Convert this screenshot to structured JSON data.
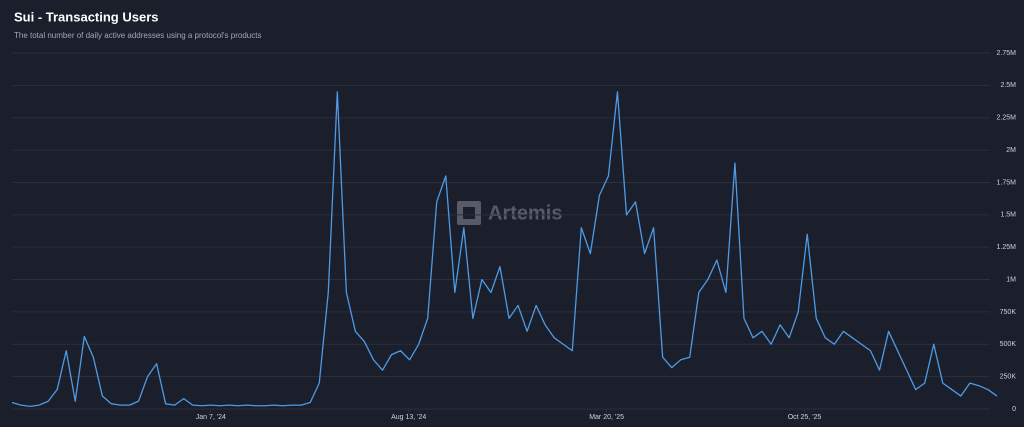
{
  "chart_data": {
    "type": "line",
    "title": "Sui - Transacting Users",
    "subtitle": "The total number of daily active addresses using a protocol's products",
    "watermark": "Artemis",
    "color": "#4d9be6",
    "grid": true,
    "x": [
      "2023-06-01",
      "2023-06-11",
      "2023-06-21",
      "2023-07-01",
      "2023-07-11",
      "2023-07-21",
      "2023-07-31",
      "2023-08-10",
      "2023-08-20",
      "2023-08-30",
      "2023-09-09",
      "2023-09-19",
      "2023-09-29",
      "2023-10-09",
      "2023-10-19",
      "2023-10-29",
      "2023-11-08",
      "2023-11-18",
      "2023-11-28",
      "2023-12-08",
      "2023-12-18",
      "2023-12-28",
      "2024-01-07",
      "2024-01-17",
      "2024-01-27",
      "2024-02-06",
      "2024-02-16",
      "2024-02-26",
      "2024-03-07",
      "2024-03-17",
      "2024-03-27",
      "2024-04-06",
      "2024-04-16",
      "2024-04-26",
      "2024-05-06",
      "2024-05-16",
      "2024-05-26",
      "2024-06-05",
      "2024-06-15",
      "2024-06-25",
      "2024-07-05",
      "2024-07-15",
      "2024-07-25",
      "2024-08-04",
      "2024-08-14",
      "2024-08-24",
      "2024-09-03",
      "2024-09-13",
      "2024-09-23",
      "2024-10-03",
      "2024-10-13",
      "2024-10-23",
      "2024-11-02",
      "2024-11-12",
      "2024-11-22",
      "2024-12-02",
      "2024-12-12",
      "2024-12-22",
      "2025-01-01",
      "2025-01-11",
      "2025-01-21",
      "2025-01-31",
      "2025-02-10",
      "2025-02-20",
      "2025-03-02",
      "2025-03-12",
      "2025-03-22",
      "2025-04-01",
      "2025-04-11",
      "2025-04-21",
      "2025-05-01",
      "2025-05-11",
      "2025-05-21",
      "2025-05-31",
      "2025-06-10",
      "2025-06-20",
      "2025-06-30",
      "2025-07-10",
      "2025-07-20",
      "2025-07-30",
      "2025-08-09",
      "2025-08-19",
      "2025-08-29",
      "2025-09-08",
      "2025-09-18",
      "2025-09-28",
      "2025-10-08",
      "2025-10-18",
      "2025-10-28",
      "2025-11-07",
      "2025-11-17",
      "2025-11-27",
      "2025-12-07",
      "2025-12-17",
      "2025-12-27",
      "2026-01-06",
      "2026-01-16",
      "2026-01-26",
      "2026-02-05",
      "2026-02-15",
      "2026-02-25",
      "2026-03-07",
      "2026-03-17",
      "2026-03-27",
      "2026-04-06",
      "2026-04-16",
      "2026-04-26",
      "2026-05-06",
      "2026-05-16",
      "2026-05-26"
    ],
    "values": [
      50000,
      30000,
      20000,
      30000,
      60000,
      150000,
      450000,
      60000,
      560000,
      400000,
      100000,
      40000,
      30000,
      30000,
      60000,
      250000,
      350000,
      40000,
      30000,
      80000,
      30000,
      25000,
      30000,
      25000,
      30000,
      25000,
      30000,
      25000,
      25000,
      30000,
      25000,
      30000,
      30000,
      50000,
      200000,
      900000,
      2450000,
      900000,
      600000,
      520000,
      380000,
      300000,
      420000,
      450000,
      380000,
      500000,
      700000,
      1600000,
      1800000,
      900000,
      1400000,
      700000,
      1000000,
      900000,
      1100000,
      700000,
      800000,
      600000,
      800000,
      650000,
      550000,
      500000,
      450000,
      1400000,
      1200000,
      1650000,
      1800000,
      2450000,
      1500000,
      1600000,
      1200000,
      1400000,
      400000,
      320000,
      380000,
      400000,
      900000,
      1000000,
      1150000,
      900000,
      1900000,
      700000,
      550000,
      600000,
      500000,
      650000,
      550000,
      750000,
      1350000,
      700000,
      550000,
      500000,
      600000,
      550000,
      500000,
      450000,
      300000,
      600000,
      450000,
      300000,
      150000,
      200000,
      500000,
      200000,
      150000,
      100000,
      200000,
      180000,
      150000,
      100000
    ],
    "xlim": [
      "2023-06-01",
      "2026-05-26"
    ],
    "xticks": [
      {
        "value": "2024-01-07",
        "label": "Jan 7, '24"
      },
      {
        "value": "2024-08-13",
        "label": "Aug 13, '24"
      },
      {
        "value": "2025-03-20",
        "label": "Mar 20, '25"
      },
      {
        "value": "2025-10-25",
        "label": "Oct 25, '25"
      }
    ],
    "ylim": [
      0,
      2750000
    ],
    "yticks": [
      0,
      {
        "value": 250000,
        "label": "250K"
      },
      {
        "value": 500000,
        "label": "500K"
      },
      {
        "value": 750000,
        "label": "750K"
      },
      {
        "value": 1000000,
        "label": "1M"
      },
      {
        "value": 1250000,
        "label": "1.25M"
      },
      {
        "value": 1500000,
        "label": "1.5M"
      },
      {
        "value": 1750000,
        "label": "1.75M"
      },
      {
        "value": 2000000,
        "label": "2M"
      },
      {
        "value": 2250000,
        "label": "2.25M"
      },
      {
        "value": 2500000,
        "label": "2.5M"
      },
      {
        "value": 2750000,
        "label": "2.75M"
      }
    ]
  }
}
